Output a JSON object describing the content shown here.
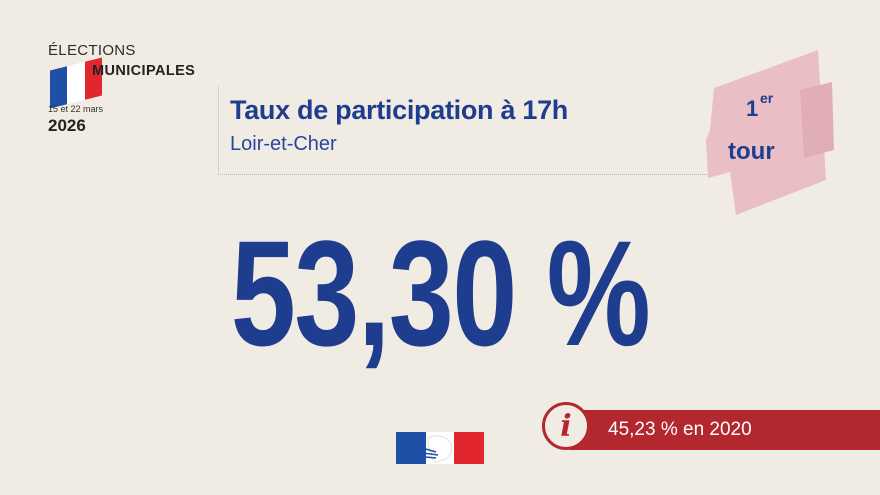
{
  "logo": {
    "line1": "ÉLECTIONS",
    "line2": "MUNICIPALES",
    "dates": "15 et 22 mars",
    "year": "2026",
    "flag_colors": [
      "#1f4fa6",
      "#ffffff",
      "#e1262d"
    ]
  },
  "header": {
    "title": "Taux de participation à 17h",
    "subtitle": "Loir-et-Cher"
  },
  "tour": {
    "number": "1",
    "superscript": "er",
    "word": "tour",
    "ribbon_color": "#e9bfc5"
  },
  "main_value": "53,30 %",
  "info": {
    "icon": "info-icon",
    "text": "45,23 % en 2020",
    "color": "#b3272e"
  },
  "footer": {
    "emblem": "marianne-logo"
  },
  "colors": {
    "background": "#f1ece3",
    "primary": "#1f3d8e"
  }
}
